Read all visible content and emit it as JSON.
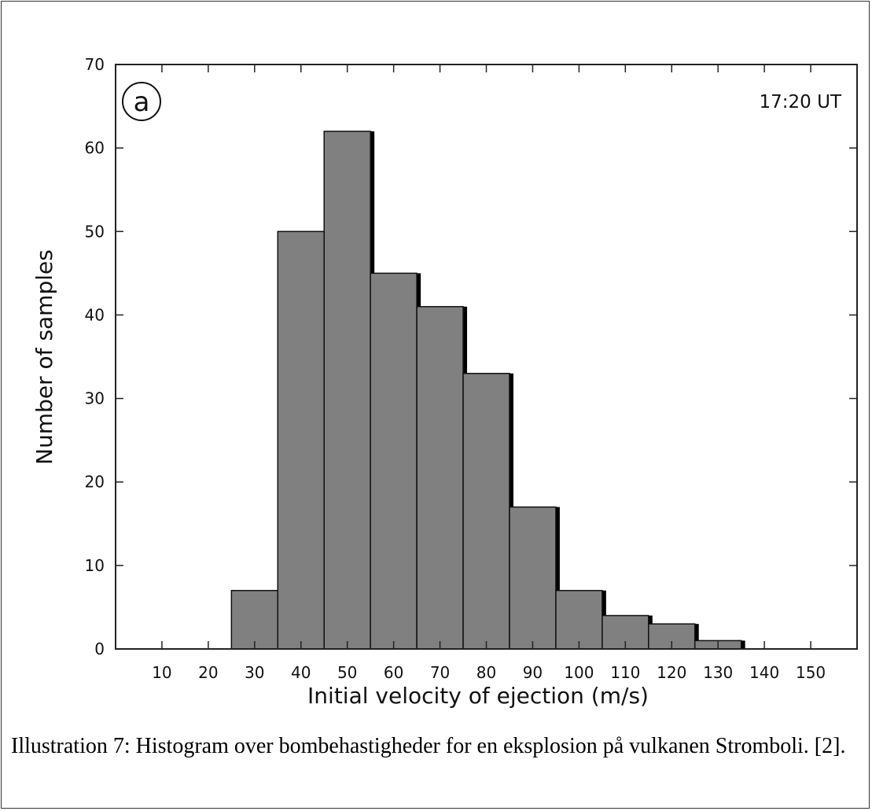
{
  "chart_data": {
    "type": "bar",
    "title": "",
    "panel_label": "a",
    "annotation": "17:20 UT",
    "xlabel": "Initial velocity of ejection (m/s)",
    "ylabel": "Number of samples",
    "xlim": [
      0,
      160
    ],
    "ylim": [
      0,
      70
    ],
    "x_ticks": [
      "10",
      "20",
      "30",
      "40",
      "50",
      "60",
      "70",
      "80",
      "90",
      "100",
      "110",
      "120",
      "130",
      "140",
      "150"
    ],
    "y_ticks": [
      "0",
      "10",
      "20",
      "30",
      "40",
      "50",
      "60",
      "70"
    ],
    "bins": [
      {
        "center": 30,
        "value": 7
      },
      {
        "center": 40,
        "value": 50
      },
      {
        "center": 50,
        "value": 62
      },
      {
        "center": 60,
        "value": 45
      },
      {
        "center": 70,
        "value": 41
      },
      {
        "center": 80,
        "value": 33
      },
      {
        "center": 90,
        "value": 17
      },
      {
        "center": 100,
        "value": 7
      },
      {
        "center": 110,
        "value": 4
      },
      {
        "center": 120,
        "value": 3
      },
      {
        "center": 130,
        "value": 1
      }
    ],
    "bar_color": "#808080",
    "bar_shadow_color": "#000000",
    "grid": false,
    "legend": "none"
  },
  "caption": {
    "text": "Illustration 7: Histogram over bombehastigheder for en eksplosion på vulkanen Stromboli. [2]."
  }
}
